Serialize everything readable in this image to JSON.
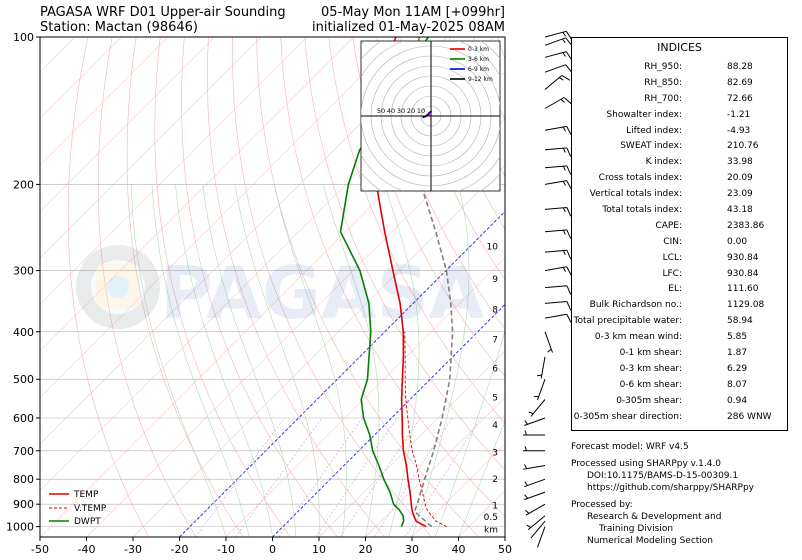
{
  "header": {
    "left_line1": "PAGASA WRF D01 Upper-air Sounding",
    "left_line2": "Station: Mactan (98646)",
    "right_line1": "05-May Mon 11AM [+099hr]",
    "right_line2": "initialized 01-May-2025 08AM"
  },
  "watermark": "PAGASA",
  "colors": {
    "temp": "#e00000",
    "vtemp": "#e00000",
    "dwpt": "#008000",
    "parcel": "#808080",
    "dry_adiabat": "#f4b4b4",
    "moist_adiabat": "#b4d8b4",
    "mixing_ratio": "#c0a0e0",
    "isotherm": "#f6c8c8",
    "zero_isotherm": "#0000ff"
  },
  "chart_data": {
    "type": "line",
    "subtype": "skew-t log-p sounding",
    "xlabel": "",
    "ylabel": "",
    "xlim": [
      -50,
      50
    ],
    "ylim": [
      1050,
      100
    ],
    "y_log": true,
    "xticks": [
      -50,
      -40,
      -30,
      -20,
      -10,
      0,
      10,
      20,
      30,
      40,
      50
    ],
    "yticks": [
      1000,
      900,
      800,
      700,
      600,
      500,
      400,
      300,
      200,
      100
    ],
    "legend": {
      "placement": "lower-left",
      "entries": [
        "TEMP",
        "V.TEMP",
        "DWPT"
      ]
    },
    "series": [
      {
        "name": "TEMP",
        "p": [
          1000,
          975,
          950,
          925,
          900,
          850,
          800,
          750,
          700,
          650,
          600,
          550,
          500,
          450,
          400,
          350,
          300,
          250,
          200,
          150,
          120,
          100
        ],
        "values": [
          30.8,
          27.5,
          25.8,
          24.2,
          22.8,
          19.9,
          16.7,
          13.4,
          9.6,
          6.0,
          2.3,
          -1.8,
          -6.0,
          -10.6,
          -16.0,
          -22.8,
          -31.4,
          -41.5,
          -53.5,
          -67.5,
          -76.0,
          -81.0
        ]
      },
      {
        "name": "V.TEMP",
        "p": [
          1000,
          975,
          950,
          925,
          900,
          850,
          800,
          750,
          700,
          650,
          600,
          550,
          500,
          450,
          400
        ],
        "values": [
          35.2,
          31.8,
          29.6,
          27.5,
          25.8,
          22.6,
          19.1,
          15.6,
          11.5,
          7.6,
          3.5,
          -0.9,
          -5.4,
          -10.2,
          -15.7
        ]
      },
      {
        "name": "DWPT",
        "p": [
          1000,
          975,
          950,
          925,
          900,
          850,
          800,
          750,
          700,
          650,
          600,
          550,
          500,
          450,
          400,
          350,
          300,
          250,
          200,
          170,
          150,
          130,
          115,
          100
        ],
        "values": [
          25.5,
          24.8,
          23.5,
          21.5,
          19.0,
          15.6,
          11.5,
          7.5,
          3.0,
          -1.0,
          -6.0,
          -10.5,
          -13.5,
          -18.0,
          -23.0,
          -29.5,
          -38.5,
          -51.0,
          -59.5,
          -64.5,
          -65.5,
          -68.0,
          -72.0,
          -74.0
        ]
      },
      {
        "name": "",
        "p": [
          1000,
          950,
          930.84,
          900,
          850,
          800,
          700,
          600,
          500,
          400,
          350,
          300,
          250,
          200,
          150,
          100
        ],
        "values": [
          32.0,
          27.0,
          25.0,
          24.1,
          22.2,
          20.3,
          16.1,
          10.9,
          4.2,
          -5.4,
          -11.9,
          -19.9,
          -30.5,
          -43.9,
          -59.5,
          -76.0
        ]
      }
    ],
    "height_labels": [
      {
        "label": "0.5",
        "p": 955
      },
      {
        "label": "1",
        "p": 905
      },
      {
        "label": "2",
        "p": 800
      },
      {
        "label": "3",
        "p": 705
      },
      {
        "label": "4",
        "p": 620
      },
      {
        "label": "5",
        "p": 545
      },
      {
        "label": "6",
        "p": 475
      },
      {
        "label": "7",
        "p": 415
      },
      {
        "label": "8",
        "p": 360
      },
      {
        "label": "9",
        "p": 312
      },
      {
        "label": "10",
        "p": 268
      },
      {
        "label": "km",
        "p": 1000
      }
    ],
    "hodograph": {
      "legend": [
        "0-3 km",
        "3-6 km",
        "6-9 km",
        "9-12 km"
      ],
      "legend_colors": [
        "#e00000",
        "#008000",
        "#0000ff",
        "#000000"
      ],
      "ring_labels": [
        "10",
        "20",
        "30",
        "40",
        "50"
      ],
      "points_u": [
        -0.5,
        -1.0,
        -1.8,
        -2.5,
        -1.4,
        1.0,
        0.4,
        -1.0,
        -3.2,
        -5.5,
        -8.5
      ],
      "points_v": [
        -0.5,
        0.4,
        1.2,
        2.6,
        3.8,
        4.8,
        4.6,
        3.8,
        1.5,
        -0.5,
        -1.5
      ]
    },
    "wind_barbs": [
      {
        "p": 1000,
        "speed": 3,
        "dir": 200
      },
      {
        "p": 975,
        "speed": 4,
        "dir": 220
      },
      {
        "p": 950,
        "speed": 5,
        "dir": 230
      },
      {
        "p": 900,
        "speed": 5,
        "dir": 240
      },
      {
        "p": 850,
        "speed": 5,
        "dir": 250
      },
      {
        "p": 800,
        "speed": 5,
        "dir": 250
      },
      {
        "p": 750,
        "speed": 5,
        "dir": 260
      },
      {
        "p": 700,
        "speed": 5,
        "dir": 270
      },
      {
        "p": 650,
        "speed": 5,
        "dir": 270
      },
      {
        "p": 600,
        "speed": 5,
        "dir": 250
      },
      {
        "p": 550,
        "speed": 5,
        "dir": 220
      },
      {
        "p": 500,
        "speed": 5,
        "dir": 200
      },
      {
        "p": 450,
        "speed": 5,
        "dir": 190
      },
      {
        "p": 400,
        "speed": 5,
        "dir": 160
      },
      {
        "p": 375,
        "speed": 10,
        "dir": 80
      },
      {
        "p": 350,
        "speed": 10,
        "dir": 85
      },
      {
        "p": 325,
        "speed": 10,
        "dir": 85
      },
      {
        "p": 300,
        "speed": 15,
        "dir": 80
      },
      {
        "p": 275,
        "speed": 15,
        "dir": 85
      },
      {
        "p": 250,
        "speed": 15,
        "dir": 85
      },
      {
        "p": 225,
        "speed": 15,
        "dir": 85
      },
      {
        "p": 200,
        "speed": 15,
        "dir": 80
      },
      {
        "p": 185,
        "speed": 15,
        "dir": 85
      },
      {
        "p": 170,
        "speed": 15,
        "dir": 85
      },
      {
        "p": 155,
        "speed": 15,
        "dir": 80
      },
      {
        "p": 140,
        "speed": 15,
        "dir": 60
      },
      {
        "p": 128,
        "speed": 15,
        "dir": 50
      },
      {
        "p": 118,
        "speed": 10,
        "dir": 70
      },
      {
        "p": 110,
        "speed": 15,
        "dir": 75
      },
      {
        "p": 104,
        "speed": 15,
        "dir": 70
      },
      {
        "p": 100,
        "speed": 15,
        "dir": 75
      }
    ]
  },
  "indices": {
    "title": "INDICES",
    "rows": [
      {
        "label": "RH_950:",
        "value": "88.28"
      },
      {
        "label": "RH_850:",
        "value": "82.69"
      },
      {
        "label": "RH_700:",
        "value": "72.66"
      },
      {
        "label": "Showalter index:",
        "value": "-1.21"
      },
      {
        "label": "Lifted index:",
        "value": "-4.93"
      },
      {
        "label": "SWEAT index:",
        "value": "210.76"
      },
      {
        "label": "K index:",
        "value": "33.98"
      },
      {
        "label": "Cross totals index:",
        "value": "20.09"
      },
      {
        "label": "Vertical totals index:",
        "value": "23.09"
      },
      {
        "label": "Total totals index:",
        "value": "43.18"
      },
      {
        "label": "CAPE:",
        "value": "2383.86"
      },
      {
        "label": "CIN:",
        "value": "0.00"
      },
      {
        "label": "LCL:",
        "value": "930.84"
      },
      {
        "label": "LFC:",
        "value": "930.84"
      },
      {
        "label": "EL:",
        "value": "111.60"
      },
      {
        "label": "Bulk Richardson no.:",
        "value": "1129.08"
      },
      {
        "label": "Total precipitable water:",
        "value": "58.94"
      },
      {
        "label": "0-3 km mean wind:",
        "value": "5.85"
      },
      {
        "label": "0-1 km shear:",
        "value": "1.87"
      },
      {
        "label": "0-3 km shear:",
        "value": "6.29"
      },
      {
        "label": "0-6 km shear:",
        "value": "8.07"
      },
      {
        "label": "0-305m shear:",
        "value": "0.94"
      },
      {
        "label": "0-305m shear direction:",
        "value": "286 WNW"
      }
    ]
  },
  "footer": {
    "forecast_model": "Forecast model: WRF v4.5",
    "processed_using": "Processed using SHARPpy v.1.4.0",
    "doi": "DOI:10.1175/BAMS-D-15-00309.1",
    "url": "https://github.com/sharppy/SHARPpy",
    "processed_by": "Processed by:",
    "division_line1": "Research & Development and",
    "division_line2": "Training Division",
    "section": "Numerical Modeling Section"
  }
}
